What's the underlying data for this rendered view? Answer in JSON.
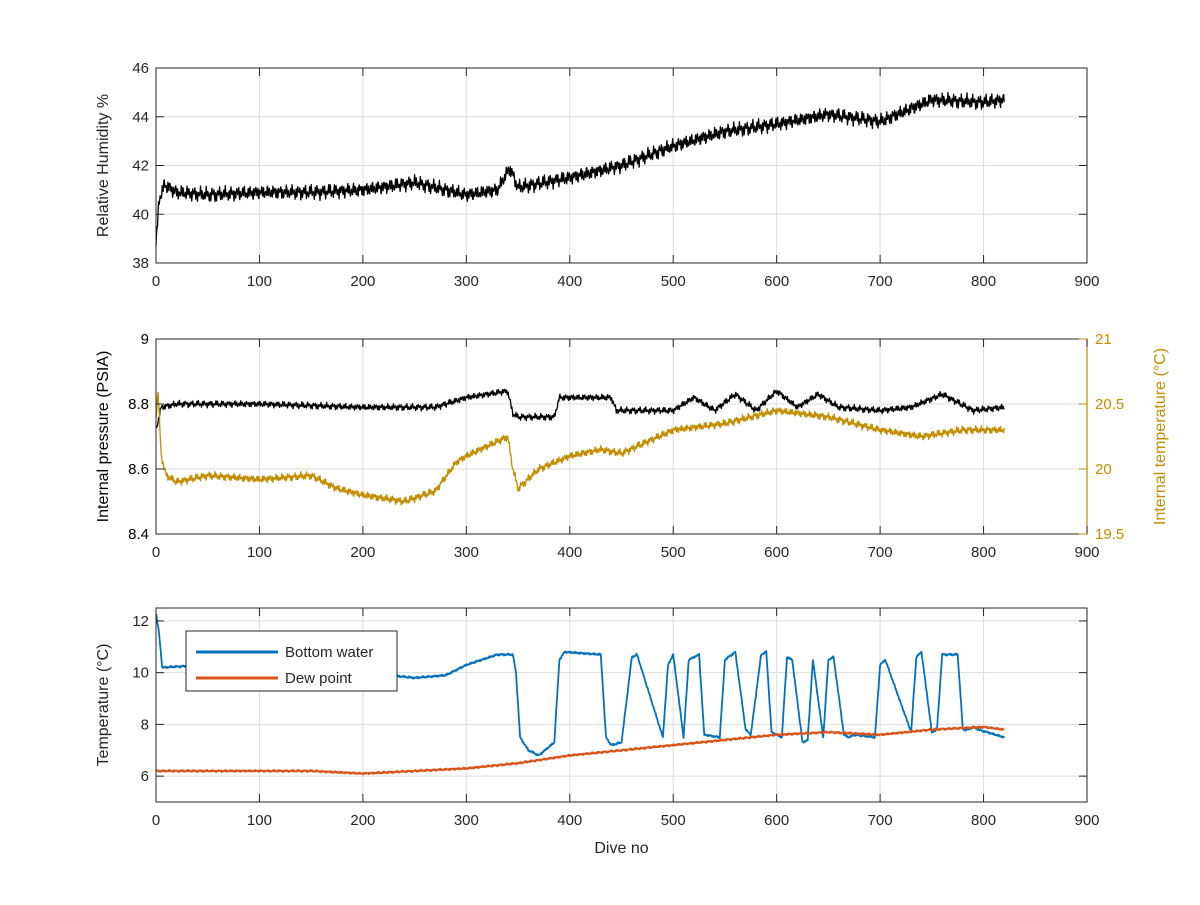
{
  "chart_data": [
    {
      "type": "line",
      "title": "",
      "xlabel": "",
      "ylabel": "Relative Humidity %",
      "xlim": [
        0,
        900
      ],
      "ylim": [
        38,
        46
      ],
      "xticks": [
        0,
        100,
        200,
        300,
        400,
        500,
        600,
        700,
        800,
        900
      ],
      "yticks": [
        38,
        40,
        42,
        44,
        46
      ],
      "grid": true,
      "series": [
        {
          "color": "#000000",
          "x": [
            0,
            3,
            8,
            20,
            50,
            100,
            150,
            200,
            250,
            280,
            300,
            330,
            342,
            350,
            400,
            450,
            500,
            550,
            600,
            650,
            700,
            750,
            800,
            820
          ],
          "y": [
            38.7,
            40.6,
            41.2,
            40.9,
            40.8,
            40.9,
            40.9,
            41.0,
            41.3,
            41.0,
            40.8,
            41.0,
            41.9,
            41.1,
            41.5,
            42.0,
            42.8,
            43.4,
            43.7,
            44.1,
            43.8,
            44.7,
            44.6,
            44.7
          ]
        }
      ]
    },
    {
      "type": "line",
      "title": "",
      "xlabel": "",
      "ylabel": "Internal pressure (PSIA)",
      "y2label": "Internal temperature (°C)",
      "xlim": [
        0,
        900
      ],
      "ylim": [
        8.4,
        9.0
      ],
      "y2lim": [
        19.5,
        21.0
      ],
      "xticks": [
        0,
        100,
        200,
        300,
        400,
        500,
        600,
        700,
        800,
        900
      ],
      "yticks": [
        8.4,
        8.6,
        8.8,
        9.0
      ],
      "yticklabels": [
        "8.4",
        "8.6",
        "8.8",
        "9"
      ],
      "y2ticks": [
        19.5,
        20.0,
        20.5,
        21.0
      ],
      "y2ticklabels": [
        "19.5",
        "20",
        "20.5",
        "21"
      ],
      "axis_colors": {
        "left": "#000000",
        "right": "#c28d00"
      },
      "grid": true,
      "series": [
        {
          "color": "#000000",
          "axis": "left",
          "x": [
            0,
            5,
            20,
            100,
            200,
            270,
            300,
            340,
            345,
            350,
            385,
            390,
            440,
            445,
            480,
            500,
            520,
            540,
            560,
            580,
            600,
            620,
            640,
            660,
            700,
            730,
            760,
            790,
            820
          ],
          "y": [
            8.72,
            8.79,
            8.8,
            8.8,
            8.79,
            8.79,
            8.82,
            8.84,
            8.77,
            8.76,
            8.76,
            8.82,
            8.82,
            8.78,
            8.78,
            8.78,
            8.82,
            8.78,
            8.83,
            8.78,
            8.84,
            8.79,
            8.83,
            8.79,
            8.78,
            8.79,
            8.83,
            8.78,
            8.79
          ]
        },
        {
          "color": "#c28d00",
          "axis": "right",
          "x": [
            0,
            2,
            5,
            10,
            20,
            50,
            100,
            150,
            175,
            200,
            240,
            270,
            290,
            300,
            340,
            345,
            350,
            370,
            400,
            430,
            450,
            500,
            550,
            600,
            650,
            700,
            740,
            780,
            820
          ],
          "y": [
            20.4,
            20.6,
            20.1,
            19.95,
            19.9,
            19.95,
            19.92,
            19.95,
            19.85,
            19.8,
            19.75,
            19.83,
            20.05,
            20.1,
            20.25,
            20.0,
            19.85,
            20.0,
            20.1,
            20.15,
            20.12,
            20.3,
            20.35,
            20.45,
            20.4,
            20.3,
            20.25,
            20.3,
            20.3
          ]
        }
      ]
    },
    {
      "type": "line",
      "title": "",
      "xlabel": "Dive no",
      "ylabel": "Temperature (°C)",
      "xlim": [
        0,
        900
      ],
      "ylim": [
        5,
        12.5
      ],
      "xticks": [
        0,
        100,
        200,
        300,
        400,
        500,
        600,
        700,
        800,
        900
      ],
      "yticks": [
        6,
        8,
        10,
        12
      ],
      "grid": true,
      "legend": {
        "position": "top-left"
      },
      "series": [
        {
          "name": "Bottom water",
          "color": "#0072bd",
          "x": [
            0,
            3,
            6,
            50,
            100,
            200,
            250,
            280,
            300,
            330,
            345,
            348,
            352,
            360,
            370,
            385,
            390,
            395,
            430,
            435,
            440,
            450,
            460,
            465,
            490,
            495,
            500,
            510,
            515,
            525,
            530,
            545,
            550,
            560,
            570,
            575,
            585,
            590,
            595,
            605,
            610,
            615,
            625,
            630,
            635,
            645,
            650,
            655,
            665,
            670,
            675,
            695,
            700,
            705,
            730,
            735,
            740,
            750,
            755,
            760,
            775,
            780,
            785,
            790,
            795,
            820
          ],
          "y": [
            12.3,
            11.5,
            10.2,
            10.3,
            10.1,
            10.0,
            9.8,
            9.9,
            10.3,
            10.7,
            10.7,
            10.0,
            7.5,
            7.0,
            6.8,
            7.3,
            10.5,
            10.8,
            10.7,
            7.5,
            7.2,
            7.3,
            10.6,
            10.7,
            7.5,
            10.3,
            10.7,
            7.5,
            10.5,
            10.7,
            7.6,
            7.5,
            10.5,
            10.8,
            7.8,
            7.6,
            10.7,
            10.8,
            7.7,
            7.5,
            10.6,
            10.5,
            7.3,
            7.4,
            10.5,
            7.5,
            10.5,
            10.6,
            7.6,
            7.5,
            7.6,
            7.5,
            10.3,
            10.5,
            7.7,
            10.6,
            10.8,
            7.7,
            7.8,
            10.7,
            10.7,
            7.8,
            7.8,
            7.9,
            7.8,
            7.5
          ]
        },
        {
          "name": "Dew point",
          "color": "#d95319",
          "x": [
            0,
            50,
            100,
            150,
            200,
            250,
            300,
            350,
            400,
            450,
            500,
            550,
            600,
            650,
            700,
            750,
            800,
            820
          ],
          "y": [
            6.2,
            6.2,
            6.2,
            6.2,
            6.1,
            6.2,
            6.3,
            6.5,
            6.8,
            7.0,
            7.2,
            7.4,
            7.6,
            7.7,
            7.6,
            7.8,
            7.9,
            7.8
          ]
        }
      ]
    }
  ]
}
